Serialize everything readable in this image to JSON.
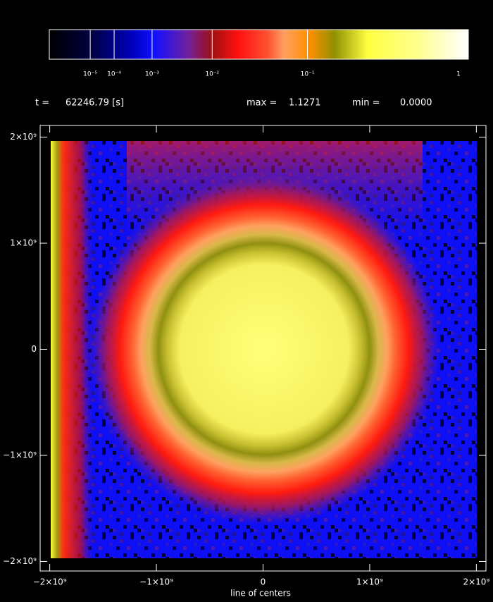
{
  "colorbar": {
    "scale": "power",
    "power": 0.2,
    "lim": [
      0,
      1.1271
    ],
    "ticks": [
      {
        "value": 1e-05,
        "label": "10⁻⁵"
      },
      {
        "value": 0.0001,
        "label": "10⁻⁴"
      },
      {
        "value": 0.001,
        "label": "10⁻³"
      },
      {
        "value": 0.01,
        "label": "10⁻²"
      },
      {
        "value": 0.1,
        "label": "10⁻¹"
      },
      1
    ]
  },
  "header": {
    "time_label": "t =",
    "time": "62246.79 [s]",
    "max_label": "max =",
    "max": "1.1271",
    "min_label": "min =",
    "min": "0.0000"
  },
  "chart_data": {
    "type": "heatmap",
    "xlabel": "line of centers",
    "xlim": [
      -2090000000,
      2090000000
    ],
    "ylim": [
      -2090000000,
      2110000000
    ],
    "xticks": [
      {
        "value": -2000000000,
        "label": "−2×10⁹"
      },
      {
        "value": -1000000000,
        "label": "−1×10⁹"
      },
      0,
      {
        "value": 1000000000,
        "label": "1×10⁹"
      },
      {
        "value": 2000000000,
        "label": "2×10⁹"
      }
    ],
    "yticks": [
      {
        "value": -2000000000,
        "label": "−2×10⁹"
      },
      {
        "value": -1000000000,
        "label": "−1×10⁹"
      },
      0,
      {
        "value": 1000000000,
        "label": "1×10⁹"
      },
      {
        "value": 2000000000,
        "label": "2×10⁹"
      }
    ]
  }
}
